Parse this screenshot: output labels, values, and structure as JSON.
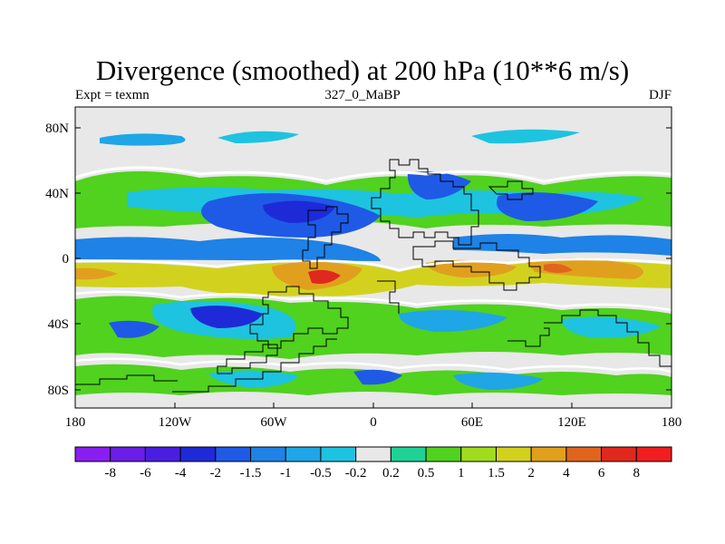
{
  "title": "Divergence (smoothed) at 200 hPa (10**6 m/s)",
  "subtitle_left": "Expt = texmn",
  "subtitle_center": "327_0_MaBP",
  "subtitle_right": "DJF",
  "lat_labels": [
    "80N",
    "40N",
    "0",
    "40S",
    "80S"
  ],
  "lon_labels": [
    "180",
    "120W",
    "60W",
    "0",
    "60E",
    "120E",
    "180"
  ],
  "colorbar": {
    "labels": [
      "-8",
      "-6",
      "-4",
      "-2",
      "-1.5",
      "-1",
      "-0.5",
      "-0.2",
      "0.2",
      "0.5",
      "1",
      "1.5",
      "2",
      "4",
      "6",
      "8"
    ],
    "colors": [
      "#8a1ef0",
      "#6a1ee8",
      "#4a1ee0",
      "#1e2ad8",
      "#1e5ae6",
      "#1e82e6",
      "#1ea6e6",
      "#1ec3e0",
      "#e8e8e8",
      "#1ed296",
      "#50d21e",
      "#a0dc1e",
      "#d2d21e",
      "#e0a01e",
      "#e0641e",
      "#e0281e",
      "#f01e1e"
    ]
  },
  "colors": {
    "land_outline": "#000000",
    "neutral": "#e8e8e8"
  }
}
